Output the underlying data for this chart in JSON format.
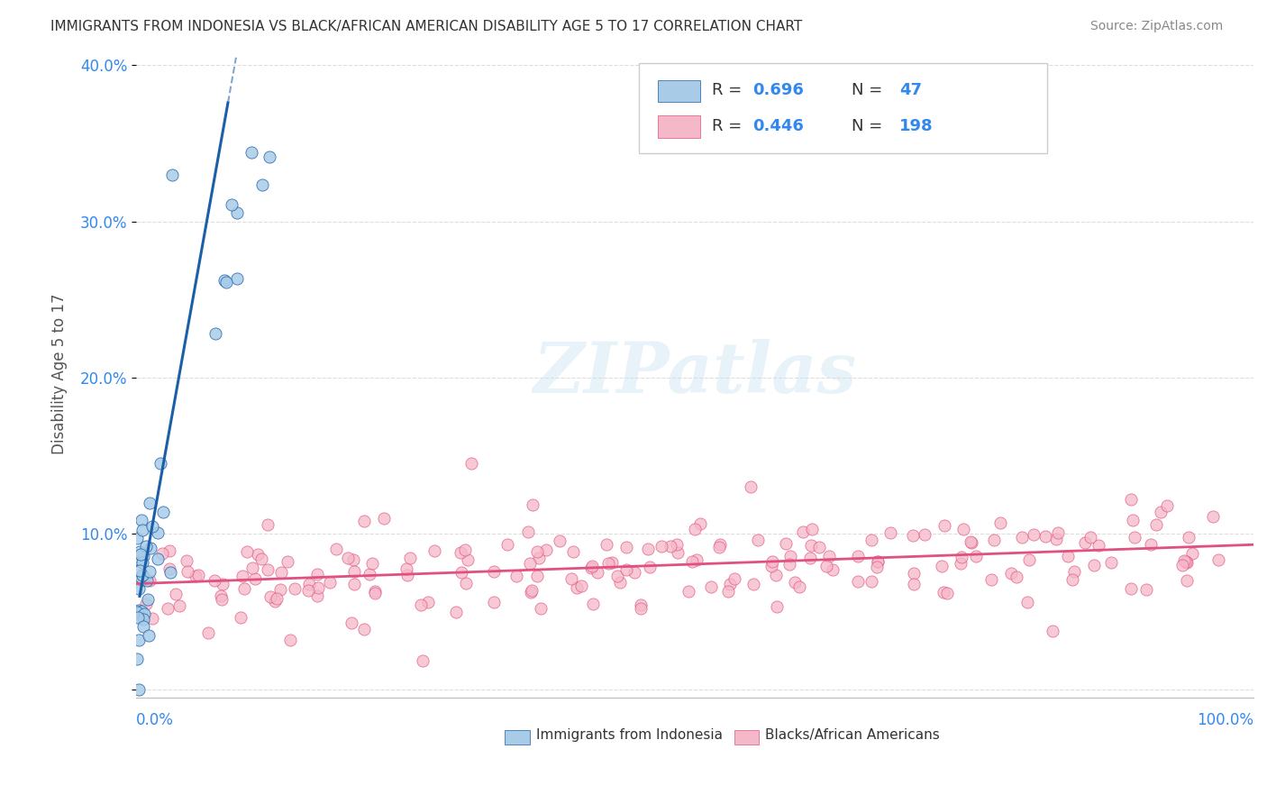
{
  "title": "IMMIGRANTS FROM INDONESIA VS BLACK/AFRICAN AMERICAN DISABILITY AGE 5 TO 17 CORRELATION CHART",
  "source": "Source: ZipAtlas.com",
  "ylabel": "Disability Age 5 to 17",
  "xlim": [
    0,
    1.0
  ],
  "ylim": [
    -0.005,
    0.41
  ],
  "yticks": [
    0.0,
    0.1,
    0.2,
    0.3,
    0.4
  ],
  "ytick_labels": [
    "",
    "10.0%",
    "20.0%",
    "30.0%",
    "40.0%"
  ],
  "color_blue": "#a8cce8",
  "color_pink": "#f5b8c8",
  "color_blue_line": "#1a5fa8",
  "color_pink_line": "#e05080",
  "color_blue_dark": "#1a5fa8",
  "color_pink_dark": "#e05080",
  "watermark": "ZIPatlas",
  "background_color": "#ffffff",
  "grid_color": "#dddddd"
}
